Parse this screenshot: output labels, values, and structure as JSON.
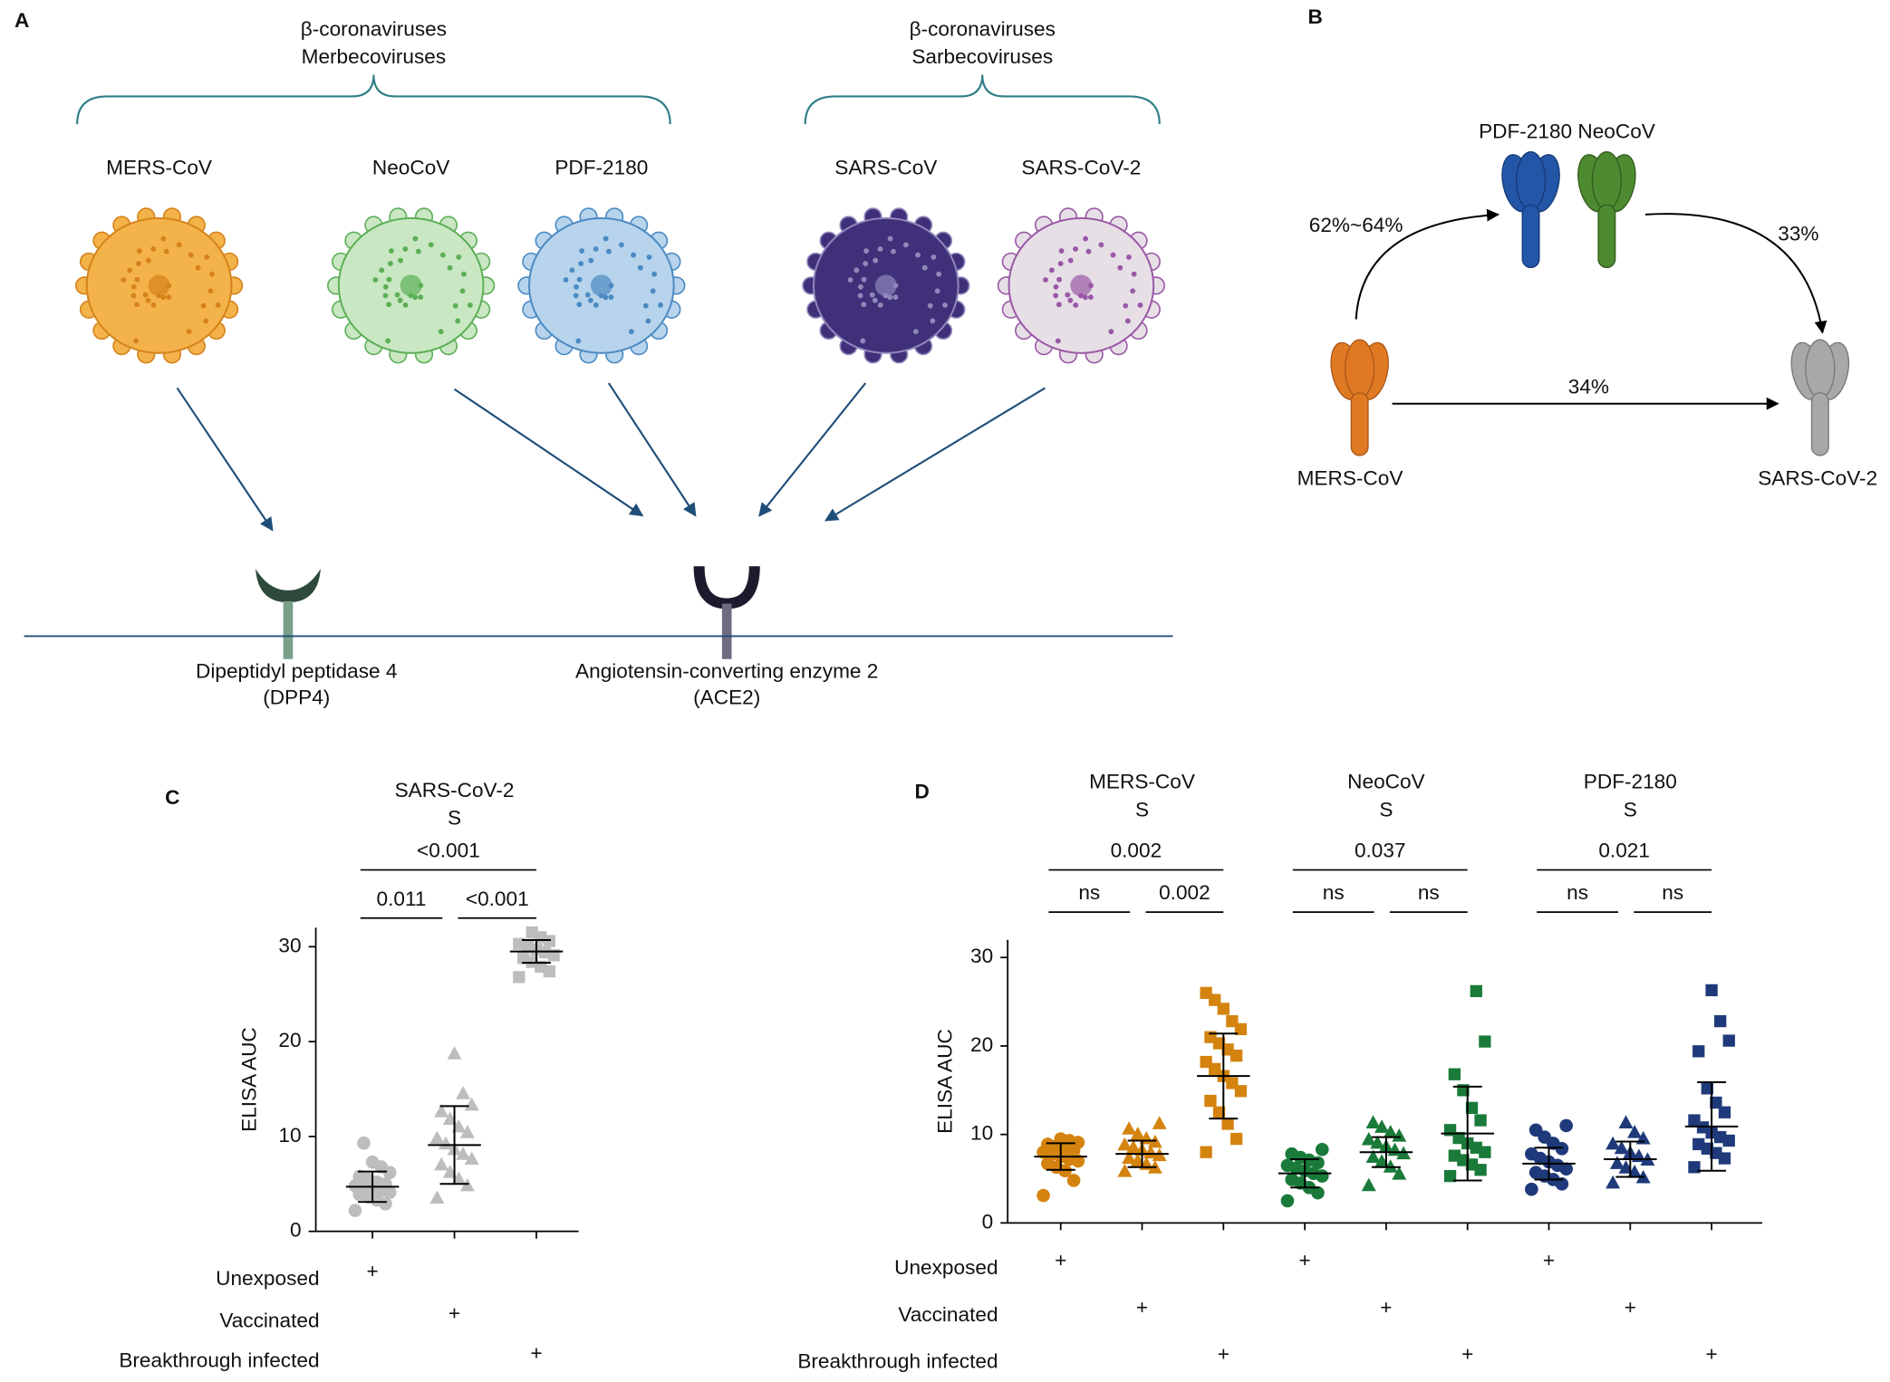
{
  "panel_a": {
    "label": "A",
    "groups": [
      {
        "lines": [
          "β-coronaviruses",
          "Merbecoviruses"
        ]
      },
      {
        "lines": [
          "β-coronaviruses",
          "Sarbecoviruses"
        ]
      }
    ],
    "viruses": [
      "MERS-CoV",
      "NeoCoV",
      "PDF-2180",
      "SARS-CoV",
      "SARS-CoV-2"
    ],
    "receptors": [
      {
        "lines": [
          "Dipeptidyl peptidase 4",
          "(DPP4)"
        ]
      },
      {
        "lines": [
          "Angiotensin-converting enzyme 2",
          "(ACE2)"
        ]
      }
    ]
  },
  "panel_b": {
    "label": "B",
    "top_label": "PDF-2180 NeoCoV",
    "left_label": "MERS-CoV",
    "right_label": "SARS-CoV-2",
    "arrow_labels": [
      "62%~64%",
      "33%",
      "34%"
    ]
  },
  "chart_data": [
    {
      "type": "dotplot",
      "label": "C",
      "headers": [
        [
          "SARS-CoV-2",
          "S"
        ]
      ],
      "ylabel": "ELISA AUC",
      "ylim": [
        0,
        32
      ],
      "yticks": [
        0,
        10,
        20,
        30
      ],
      "brackets": [
        {
          "label": "<0.001",
          "from": 0,
          "to": 2
        },
        {
          "label": "0.011",
          "from": 0,
          "to": 1
        },
        {
          "label": "<0.001",
          "from": 1,
          "to": 2
        }
      ],
      "groups": [
        {
          "color": "#bdbdbd",
          "marker": "circle",
          "mean": 4.7,
          "sd": 1.6,
          "values": [
            2.2,
            2.9,
            3.3,
            3.6,
            3.9,
            4.1,
            4.3,
            4.5,
            4.6,
            4.8,
            5.0,
            5.2,
            5.5,
            5.8,
            6.2,
            6.8,
            7.3,
            9.3
          ]
        },
        {
          "color": "#bdbdbd",
          "marker": "triangle",
          "mean": 9.1,
          "sd": 4.1,
          "values": [
            3.5,
            4.8,
            5.5,
            6.2,
            7.0,
            7.6,
            8.1,
            8.6,
            9.2,
            9.8,
            10.4,
            11.0,
            11.8,
            12.6,
            13.3,
            14.5,
            18.7
          ]
        },
        {
          "color": "#bdbdbd",
          "marker": "square",
          "mean": 29.5,
          "sd": 1.2,
          "values": [
            26.8,
            27.4,
            27.9,
            28.4,
            28.8,
            29.1,
            29.4,
            29.7,
            30.0,
            30.3,
            30.6,
            31.0,
            31.5
          ]
        }
      ],
      "conditions": [
        {
          "label": "Unexposed",
          "marks": [
            "+",
            null,
            null
          ]
        },
        {
          "label": "Vaccinated",
          "marks": [
            null,
            "+",
            null
          ]
        },
        {
          "label": "Breakthrough infected",
          "marks": [
            null,
            null,
            "+"
          ]
        }
      ]
    },
    {
      "type": "dotplot",
      "label": "D",
      "headers": [
        [
          "MERS-CoV",
          "S"
        ],
        [
          "NeoCoV",
          "S"
        ],
        [
          "PDF-2180",
          "S"
        ]
      ],
      "ylabel": "ELISA AUC",
      "ylim": [
        0,
        32
      ],
      "yticks": [
        0,
        10,
        20,
        30
      ],
      "brackets": [
        {
          "label": "0.002",
          "from": 0,
          "to": 2
        },
        {
          "label": "ns",
          "from": 0,
          "to": 1
        },
        {
          "label": "0.002",
          "from": 1,
          "to": 2
        },
        {
          "label": "0.037",
          "from": 3,
          "to": 5
        },
        {
          "label": "ns",
          "from": 3,
          "to": 4
        },
        {
          "label": "ns",
          "from": 4,
          "to": 5
        },
        {
          "label": "0.021",
          "from": 6,
          "to": 8
        },
        {
          "label": "ns",
          "from": 6,
          "to": 7
        },
        {
          "label": "ns",
          "from": 7,
          "to": 8
        }
      ],
      "groups": [
        {
          "color": "#d4830f",
          "marker": "circle",
          "mean": 7.5,
          "sd": 1.5,
          "values": [
            3.1,
            4.8,
            5.9,
            6.3,
            6.7,
            7.0,
            7.2,
            7.5,
            7.8,
            8.0,
            8.2,
            8.5,
            8.7,
            8.9,
            9.1,
            9.3,
            9.5
          ]
        },
        {
          "color": "#d4830f",
          "marker": "triangle",
          "mean": 7.8,
          "sd": 1.5,
          "values": [
            5.8,
            6.2,
            6.6,
            7.0,
            7.3,
            7.6,
            7.9,
            8.2,
            8.5,
            8.8,
            9.1,
            9.5,
            10.0,
            10.6,
            11.2
          ]
        },
        {
          "color": "#d4830f",
          "marker": "square",
          "mean": 16.6,
          "sd": 4.8,
          "values": [
            8.0,
            9.5,
            11.2,
            12.5,
            13.8,
            14.9,
            15.8,
            16.6,
            17.4,
            18.2,
            18.9,
            19.6,
            20.3,
            21.0,
            21.9,
            22.8,
            24.2,
            25.2,
            26.0
          ]
        },
        {
          "color": "#1a7a3a",
          "marker": "circle",
          "mean": 5.6,
          "sd": 1.6,
          "values": [
            2.5,
            3.4,
            4.0,
            4.5,
            4.9,
            5.3,
            5.6,
            5.9,
            6.2,
            6.5,
            6.8,
            7.1,
            7.4,
            7.8,
            8.3
          ]
        },
        {
          "color": "#1a7a3a",
          "marker": "triangle",
          "mean": 8.0,
          "sd": 1.7,
          "values": [
            4.2,
            5.5,
            6.3,
            6.9,
            7.4,
            7.8,
            8.2,
            8.6,
            9.0,
            9.4,
            9.8,
            10.2,
            10.8,
            11.3
          ]
        },
        {
          "color": "#1a7a3a",
          "marker": "square",
          "mean": 10.1,
          "sd": 5.3,
          "values": [
            5.3,
            6.0,
            6.6,
            7.1,
            7.6,
            8.0,
            8.5,
            9.0,
            9.6,
            10.5,
            11.6,
            13.0,
            15.0,
            16.8,
            20.5,
            26.2
          ]
        },
        {
          "color": "#1f3a7a",
          "marker": "circle",
          "mean": 6.7,
          "sd": 1.8,
          "values": [
            3.8,
            4.4,
            4.9,
            5.3,
            5.7,
            6.1,
            6.5,
            6.9,
            7.3,
            7.8,
            8.4,
            9.0,
            9.7,
            10.5,
            11.0
          ]
        },
        {
          "color": "#1f3a7a",
          "marker": "triangle",
          "mean": 7.2,
          "sd": 2.0,
          "values": [
            4.5,
            5.1,
            5.7,
            6.2,
            6.7,
            7.1,
            7.5,
            7.9,
            8.4,
            8.9,
            9.5,
            10.2,
            11.3
          ]
        },
        {
          "color": "#1f3a7a",
          "marker": "square",
          "mean": 10.9,
          "sd": 5.0,
          "values": [
            6.3,
            7.3,
            7.9,
            8.4,
            8.9,
            9.3,
            9.7,
            10.2,
            10.8,
            11.6,
            12.5,
            13.6,
            15.2,
            19.4,
            20.6,
            22.8,
            26.3
          ]
        }
      ],
      "conditions": [
        {
          "label": "Unexposed",
          "marks": [
            "+",
            null,
            null,
            "+",
            null,
            null,
            "+",
            null,
            null
          ]
        },
        {
          "label": "Vaccinated",
          "marks": [
            null,
            "+",
            null,
            null,
            "+",
            null,
            null,
            "+",
            null
          ]
        },
        {
          "label": "Breakthrough infected",
          "marks": [
            null,
            null,
            "+",
            null,
            null,
            "+",
            null,
            null,
            "+"
          ]
        }
      ]
    }
  ]
}
